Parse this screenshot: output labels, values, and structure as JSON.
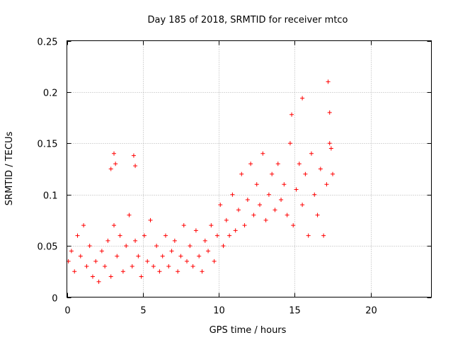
{
  "chart_data": {
    "type": "scatter",
    "title": "Day 185 of 2018, SRMTID for receiver mtco",
    "xlabel": "GPS time / hours",
    "ylabel": "SRMTID / TECUs",
    "xlim": [
      0,
      24
    ],
    "ylim": [
      0,
      0.25
    ],
    "xticks": [
      0,
      5,
      10,
      15,
      20
    ],
    "yticks": [
      0,
      0.05,
      0.1,
      0.15,
      0.2,
      0.25
    ],
    "ytick_labels": [
      "0",
      "0.05",
      "0.1",
      "0.15",
      "0.2",
      "0.25"
    ],
    "grid": true,
    "marker": "+",
    "color": "#ff0000",
    "series": [
      {
        "x": [
          0.1,
          0.3,
          0.5,
          0.7,
          0.9,
          1.1,
          1.3,
          1.5,
          1.7,
          1.9,
          2.1,
          2.3,
          2.5,
          2.7,
          2.9,
          3.1,
          3.3,
          3.5,
          3.7,
          3.9,
          4.1,
          4.3,
          4.5,
          4.7,
          4.9,
          5.1,
          5.3,
          5.5,
          5.7,
          5.9,
          6.1,
          6.3,
          6.5,
          6.7,
          6.9,
          7.1,
          7.3,
          7.5,
          7.7,
          7.9,
          8.1,
          8.3,
          8.5,
          8.7,
          8.9,
          9.1,
          9.3,
          9.5,
          9.7,
          9.9,
          10.1,
          10.3,
          10.5,
          10.7,
          10.9,
          11.1,
          11.3,
          11.5,
          11.7,
          11.9,
          12.1,
          12.3,
          12.5,
          12.7,
          12.9,
          13.1,
          13.3,
          13.5,
          13.7,
          13.9,
          14.1,
          14.3,
          14.5,
          14.7,
          14.9,
          15.1,
          15.3,
          15.5,
          15.7,
          15.9,
          16.1,
          16.3,
          16.5,
          16.7,
          16.9,
          17.1,
          17.3,
          17.5,
          3.1,
          3.2,
          4.4,
          4.5,
          2.9,
          15.5,
          17.2,
          17.3,
          14.8,
          17.4
        ],
        "y": [
          0.035,
          0.045,
          0.025,
          0.06,
          0.04,
          0.07,
          0.03,
          0.05,
          0.02,
          0.035,
          0.015,
          0.045,
          0.03,
          0.055,
          0.02,
          0.07,
          0.04,
          0.06,
          0.025,
          0.05,
          0.08,
          0.03,
          0.055,
          0.04,
          0.02,
          0.06,
          0.035,
          0.075,
          0.03,
          0.05,
          0.025,
          0.04,
          0.06,
          0.03,
          0.045,
          0.055,
          0.025,
          0.04,
          0.07,
          0.035,
          0.05,
          0.03,
          0.065,
          0.04,
          0.025,
          0.055,
          0.045,
          0.07,
          0.035,
          0.06,
          0.09,
          0.05,
          0.075,
          0.06,
          0.1,
          0.065,
          0.085,
          0.12,
          0.07,
          0.095,
          0.13,
          0.08,
          0.11,
          0.09,
          0.14,
          0.075,
          0.1,
          0.12,
          0.085,
          0.13,
          0.095,
          0.11,
          0.08,
          0.15,
          0.07,
          0.105,
          0.13,
          0.09,
          0.12,
          0.06,
          0.14,
          0.1,
          0.08,
          0.125,
          0.06,
          0.11,
          0.15,
          0.12,
          0.14,
          0.13,
          0.138,
          0.128,
          0.125,
          0.194,
          0.21,
          0.18,
          0.178,
          0.145
        ]
      }
    ]
  }
}
